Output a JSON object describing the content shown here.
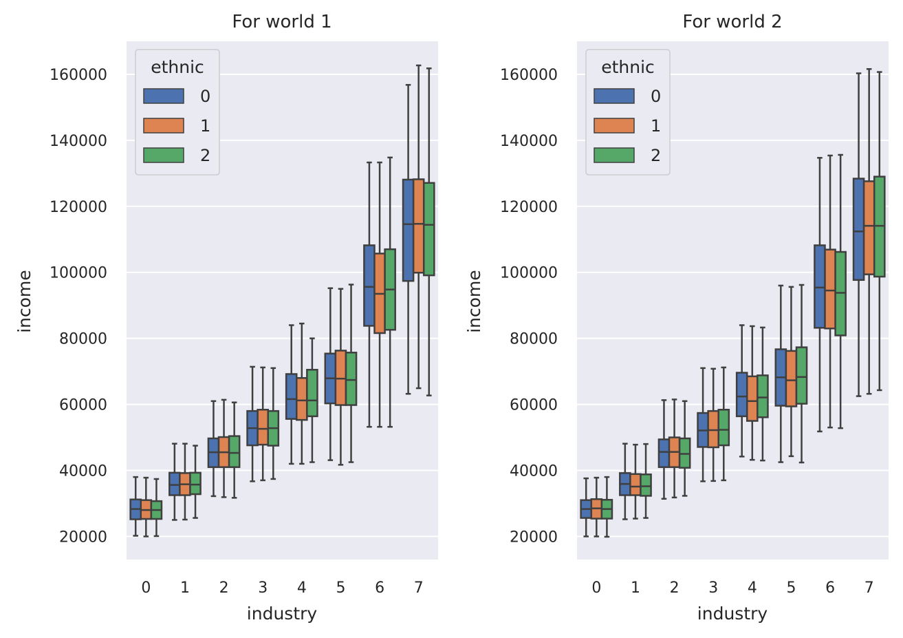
{
  "chart_data": [
    {
      "type": "box",
      "title": "For world 1",
      "xlabel": "industry",
      "ylabel": "income",
      "categories": [
        "0",
        "1",
        "2",
        "3",
        "4",
        "5",
        "6",
        "7"
      ],
      "ylim": [
        13000,
        170000
      ],
      "yticks": [
        20000,
        40000,
        60000,
        80000,
        100000,
        120000,
        140000,
        160000
      ],
      "grid": true,
      "legend": {
        "title": "ethnic",
        "position": "top-left",
        "entries": [
          "0",
          "1",
          "2"
        ]
      },
      "series": [
        {
          "name": "0",
          "color": "#4c72b0",
          "boxes": [
            {
              "whislo": 20200,
              "q1": 25200,
              "med": 28300,
              "q3": 31200,
              "whishi": 38000
            },
            {
              "whislo": 25000,
              "q1": 32500,
              "med": 35600,
              "q3": 39300,
              "whishi": 48100
            },
            {
              "whislo": 32200,
              "q1": 41000,
              "med": 45500,
              "q3": 49700,
              "whishi": 61000
            },
            {
              "whislo": 36700,
              "q1": 47600,
              "med": 52800,
              "q3": 58000,
              "whishi": 71400
            },
            {
              "whislo": 42000,
              "q1": 55600,
              "med": 61600,
              "q3": 69200,
              "whishi": 84000
            },
            {
              "whislo": 43100,
              "q1": 60300,
              "med": 67900,
              "q3": 75400,
              "whishi": 95200
            },
            {
              "whislo": 53200,
              "q1": 83800,
              "med": 95600,
              "q3": 108200,
              "whishi": 133300
            },
            {
              "whislo": 63200,
              "q1": 97400,
              "med": 114600,
              "q3": 128100,
              "whishi": 156800
            }
          ]
        },
        {
          "name": "1",
          "color": "#dd8452",
          "boxes": [
            {
              "whislo": 20000,
              "q1": 25300,
              "med": 28000,
              "q3": 31000,
              "whishi": 37800
            },
            {
              "whislo": 25100,
              "q1": 32500,
              "med": 35800,
              "q3": 39200,
              "whishi": 48100
            },
            {
              "whislo": 31900,
              "q1": 41000,
              "med": 45500,
              "q3": 50100,
              "whishi": 61400
            },
            {
              "whislo": 37000,
              "q1": 47800,
              "med": 52600,
              "q3": 58400,
              "whishi": 71200
            },
            {
              "whislo": 42000,
              "q1": 55300,
              "med": 61200,
              "q3": 68000,
              "whishi": 84500
            },
            {
              "whislo": 41700,
              "q1": 59800,
              "med": 67800,
              "q3": 76300,
              "whishi": 95000
            },
            {
              "whislo": 53200,
              "q1": 81600,
              "med": 93500,
              "q3": 105700,
              "whishi": 133300
            },
            {
              "whislo": 64900,
              "q1": 99900,
              "med": 114700,
              "q3": 128200,
              "whishi": 162700
            }
          ]
        },
        {
          "name": "2",
          "color": "#55a868",
          "boxes": [
            {
              "whislo": 20100,
              "q1": 25300,
              "med": 28000,
              "q3": 30700,
              "whishi": 37400
            },
            {
              "whislo": 25600,
              "q1": 32800,
              "med": 35700,
              "q3": 39300,
              "whishi": 47500
            },
            {
              "whislo": 31700,
              "q1": 41000,
              "med": 45300,
              "q3": 50400,
              "whishi": 60600
            },
            {
              "whislo": 37400,
              "q1": 47500,
              "med": 52800,
              "q3": 58000,
              "whishi": 71000
            },
            {
              "whislo": 42500,
              "q1": 56400,
              "med": 61200,
              "q3": 70500,
              "whishi": 80000
            },
            {
              "whislo": 42500,
              "q1": 59800,
              "med": 67400,
              "q3": 75700,
              "whishi": 96300
            },
            {
              "whislo": 53200,
              "q1": 82600,
              "med": 94800,
              "q3": 107000,
              "whishi": 134800
            },
            {
              "whislo": 62700,
              "q1": 99100,
              "med": 114400,
              "q3": 127100,
              "whishi": 161800
            }
          ]
        }
      ]
    },
    {
      "type": "box",
      "title": "For world 2",
      "xlabel": "industry",
      "ylabel": "income",
      "categories": [
        "0",
        "1",
        "2",
        "3",
        "4",
        "5",
        "6",
        "7"
      ],
      "ylim": [
        13000,
        170000
      ],
      "yticks": [
        20000,
        40000,
        60000,
        80000,
        100000,
        120000,
        140000,
        160000
      ],
      "grid": true,
      "legend": {
        "title": "ethnic",
        "position": "top-left",
        "entries": [
          "0",
          "1",
          "2"
        ]
      },
      "series": [
        {
          "name": "0",
          "color": "#4c72b0",
          "boxes": [
            {
              "whislo": 20000,
              "q1": 25600,
              "med": 28300,
              "q3": 31000,
              "whishi": 37600
            },
            {
              "whislo": 25200,
              "q1": 32500,
              "med": 35900,
              "q3": 39200,
              "whishi": 48100
            },
            {
              "whislo": 31400,
              "q1": 41000,
              "med": 45600,
              "q3": 49400,
              "whishi": 61300
            },
            {
              "whislo": 36700,
              "q1": 47100,
              "med": 52100,
              "q3": 57400,
              "whishi": 71000
            },
            {
              "whislo": 44200,
              "q1": 56400,
              "med": 62400,
              "q3": 69600,
              "whishi": 84000
            },
            {
              "whislo": 42500,
              "q1": 59600,
              "med": 68200,
              "q3": 76700,
              "whishi": 96000
            },
            {
              "whislo": 51800,
              "q1": 83200,
              "med": 95400,
              "q3": 108200,
              "whishi": 134700
            },
            {
              "whislo": 62500,
              "q1": 97700,
              "med": 112400,
              "q3": 128400,
              "whishi": 160300
            }
          ]
        },
        {
          "name": "1",
          "color": "#dd8452",
          "boxes": [
            {
              "whislo": 20000,
              "q1": 25400,
              "med": 28500,
              "q3": 31300,
              "whishi": 37800
            },
            {
              "whislo": 25400,
              "q1": 32500,
              "med": 35100,
              "q3": 38900,
              "whishi": 47800
            },
            {
              "whislo": 31800,
              "q1": 41000,
              "med": 45600,
              "q3": 50000,
              "whishi": 61500
            },
            {
              "whislo": 36800,
              "q1": 47000,
              "med": 52200,
              "q3": 58000,
              "whishi": 70800
            },
            {
              "whislo": 43200,
              "q1": 55000,
              "med": 61000,
              "q3": 68500,
              "whishi": 83700
            },
            {
              "whislo": 44300,
              "q1": 59400,
              "med": 67300,
              "q3": 76200,
              "whishi": 95600
            },
            {
              "whislo": 53000,
              "q1": 83000,
              "med": 94500,
              "q3": 106900,
              "whishi": 135400
            },
            {
              "whislo": 63200,
              "q1": 99400,
              "med": 114100,
              "q3": 127600,
              "whishi": 161600
            }
          ]
        },
        {
          "name": "2",
          "color": "#55a868",
          "boxes": [
            {
              "whislo": 19900,
              "q1": 25400,
              "med": 28300,
              "q3": 31100,
              "whishi": 38000
            },
            {
              "whislo": 25600,
              "q1": 32300,
              "med": 35200,
              "q3": 38800,
              "whishi": 48000
            },
            {
              "whislo": 32300,
              "q1": 40800,
              "med": 45000,
              "q3": 49700,
              "whishi": 61000
            },
            {
              "whislo": 37000,
              "q1": 47600,
              "med": 52300,
              "q3": 58400,
              "whishi": 71200
            },
            {
              "whislo": 43000,
              "q1": 56100,
              "med": 62100,
              "q3": 68800,
              "whishi": 83300
            },
            {
              "whislo": 42400,
              "q1": 60200,
              "med": 68300,
              "q3": 77300,
              "whishi": 96200
            },
            {
              "whislo": 52800,
              "q1": 80900,
              "med": 93800,
              "q3": 106200,
              "whishi": 135600
            },
            {
              "whislo": 64300,
              "q1": 98700,
              "med": 114100,
              "q3": 129000,
              "whishi": 160700
            }
          ]
        }
      ]
    }
  ]
}
